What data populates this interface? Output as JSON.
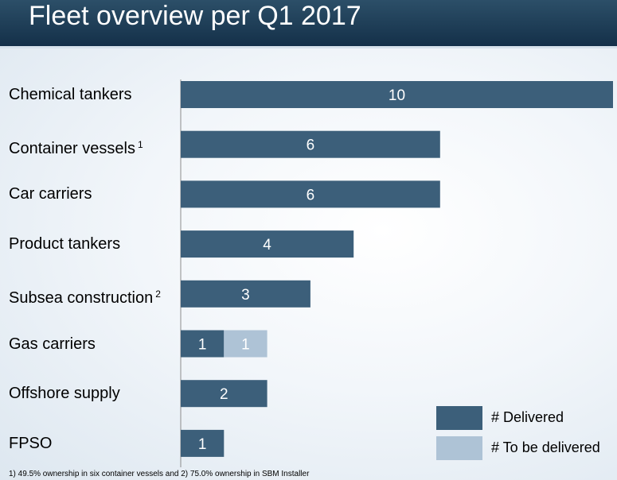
{
  "header": {
    "title": "Fleet overview per Q1 2017"
  },
  "colors": {
    "delivered": "#3c5f7a",
    "to_be_delivered": "#aec3d6",
    "bar_label": "#ffffff"
  },
  "chart_data": {
    "type": "bar",
    "orientation": "horizontal",
    "stacked": true,
    "categories": [
      {
        "label": "Chemical tankers",
        "footnote": ""
      },
      {
        "label": "Container vessels",
        "footnote": "1"
      },
      {
        "label": "Car carriers",
        "footnote": ""
      },
      {
        "label": "Product tankers",
        "footnote": ""
      },
      {
        "label": "Subsea construction",
        "footnote": "2"
      },
      {
        "label": "Gas carriers",
        "footnote": ""
      },
      {
        "label": "Offshore supply",
        "footnote": ""
      },
      {
        "label": "FPSO",
        "footnote": ""
      }
    ],
    "series": [
      {
        "name": "# Delivered",
        "color": "#3c5f7a",
        "values": [
          10,
          6,
          6,
          4,
          3,
          1,
          2,
          1
        ]
      },
      {
        "name": "# To be delivered",
        "color": "#aec3d6",
        "values": [
          0,
          0,
          0,
          0,
          0,
          1,
          0,
          0
        ]
      }
    ],
    "xlim": [
      0,
      10
    ],
    "grid": false,
    "legend_position": "bottom-right"
  },
  "footnote": "1) 49.5% ownership in six container vessels and 2) 75.0% ownership in SBM Installer"
}
